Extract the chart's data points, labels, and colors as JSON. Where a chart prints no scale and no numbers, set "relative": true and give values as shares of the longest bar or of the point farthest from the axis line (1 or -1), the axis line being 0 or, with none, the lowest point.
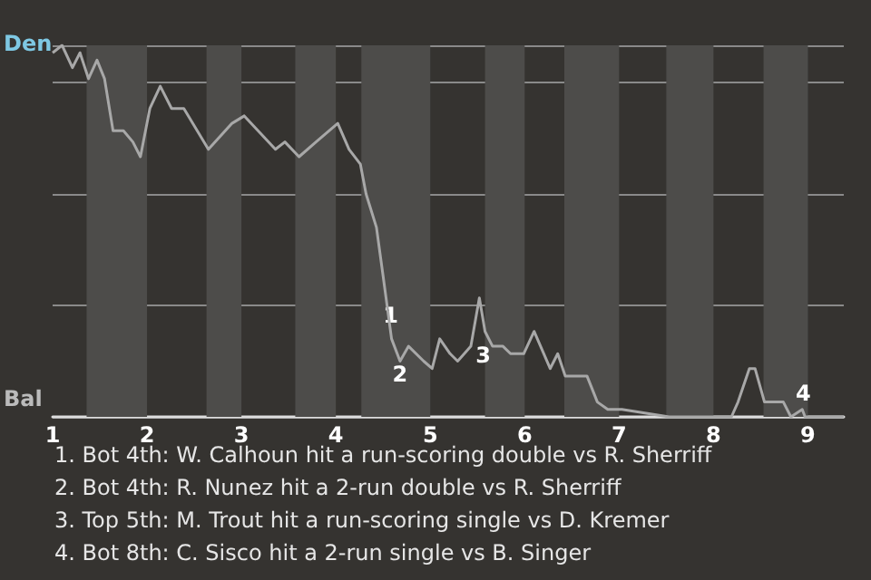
{
  "chart_data": {
    "type": "line",
    "relative": true,
    "x": [
      1,
      1.1,
      1.21,
      1.29,
      1.38,
      1.47,
      1.55,
      1.64,
      1.75,
      1.85,
      1.93,
      2.03,
      2.14,
      2.26,
      2.39,
      2.65,
      2.9,
      3.03,
      3.36,
      3.46,
      3.61,
      3.79,
      4.02,
      4.14,
      4.26,
      4.32,
      4.43,
      4.5,
      4.59,
      4.68,
      4.77,
      4.93,
      5.02,
      5.1,
      5.21,
      5.29,
      5.43,
      5.52,
      5.58,
      5.66,
      5.77,
      5.85,
      5.99,
      6.1,
      6.27,
      6.35,
      6.43,
      6.54,
      6.66,
      6.77,
      6.88,
      7.03,
      7.53,
      7.87,
      8.07,
      8.19,
      8.26,
      8.38,
      8.44,
      8.54,
      8.74,
      8.82,
      8.94,
      8.97,
      9.13,
      9.38
    ],
    "series": [
      {
        "color": "#a8a8a8",
        "values": [
          0.98,
          1,
          0.94,
          0.98,
          0.91,
          0.96,
          0.91,
          0.77,
          0.77,
          0.74,
          0.7,
          0.83,
          0.89,
          0.83,
          0.83,
          0.72,
          0.79,
          0.81,
          0.72,
          0.74,
          0.7,
          0.74,
          0.79,
          0.72,
          0.68,
          0.6,
          0.51,
          0.38,
          0.21,
          0.15,
          0.19,
          0.15,
          0.13,
          0.21,
          0.17,
          0.15,
          0.19,
          0.32,
          0.23,
          0.19,
          0.19,
          0.17,
          0.17,
          0.23,
          0.13,
          0.17,
          0.11,
          0.11,
          0.11,
          0.04,
          0.02,
          0.02,
          0,
          0,
          0,
          0,
          0.04,
          0.13,
          0.13,
          0.04,
          0.04,
          0,
          0.02,
          0,
          0,
          0
        ]
      }
    ],
    "xlim": [
      1,
      9.38
    ],
    "xticks": [
      1,
      2,
      3,
      4,
      5,
      6,
      7,
      8,
      9
    ],
    "grid": "y",
    "marker": "none",
    "bands": [
      {
        "axis": "x",
        "from": 1.36,
        "to": 2,
        "color": "#4d4c4a"
      },
      {
        "axis": "x",
        "from": 2.63,
        "to": 3,
        "color": "#4d4c4a"
      },
      {
        "axis": "x",
        "from": 3.57,
        "to": 4,
        "color": "#4d4c4a"
      },
      {
        "axis": "x",
        "from": 4.27,
        "to": 5,
        "color": "#4d4c4a"
      },
      {
        "axis": "x",
        "from": 5.58,
        "to": 6,
        "color": "#4d4c4a"
      },
      {
        "axis": "x",
        "from": 6.42,
        "to": 7,
        "color": "#4d4c4a"
      },
      {
        "axis": "x",
        "from": 7.5,
        "to": 8,
        "color": "#4d4c4a"
      },
      {
        "axis": "x",
        "from": 8.53,
        "to": 9,
        "color": "#4d4c4a"
      }
    ],
    "annotations": [
      "Den",
      "Bal",
      {
        "text": "1",
        "x": 4.58,
        "y": 0.24
      },
      {
        "text": "2",
        "x": 4.68,
        "y": 0.15
      },
      {
        "text": "3",
        "x": 5.56,
        "y": 0.2
      },
      {
        "text": "4",
        "x": 8.95,
        "y": 0.03
      },
      "1. Bot 4th: W. Calhoun hit a run-scoring double vs R. Sherriff",
      "2. Bot 4th: R. Nunez hit a 2-run double vs R. Sherriff",
      "3. Top 5th: M. Trout hit a run-scoring single vs D. Kremer",
      "4. Bot 8th: C. Sisco hit a 2-run single vs B. Singer"
    ]
  }
}
